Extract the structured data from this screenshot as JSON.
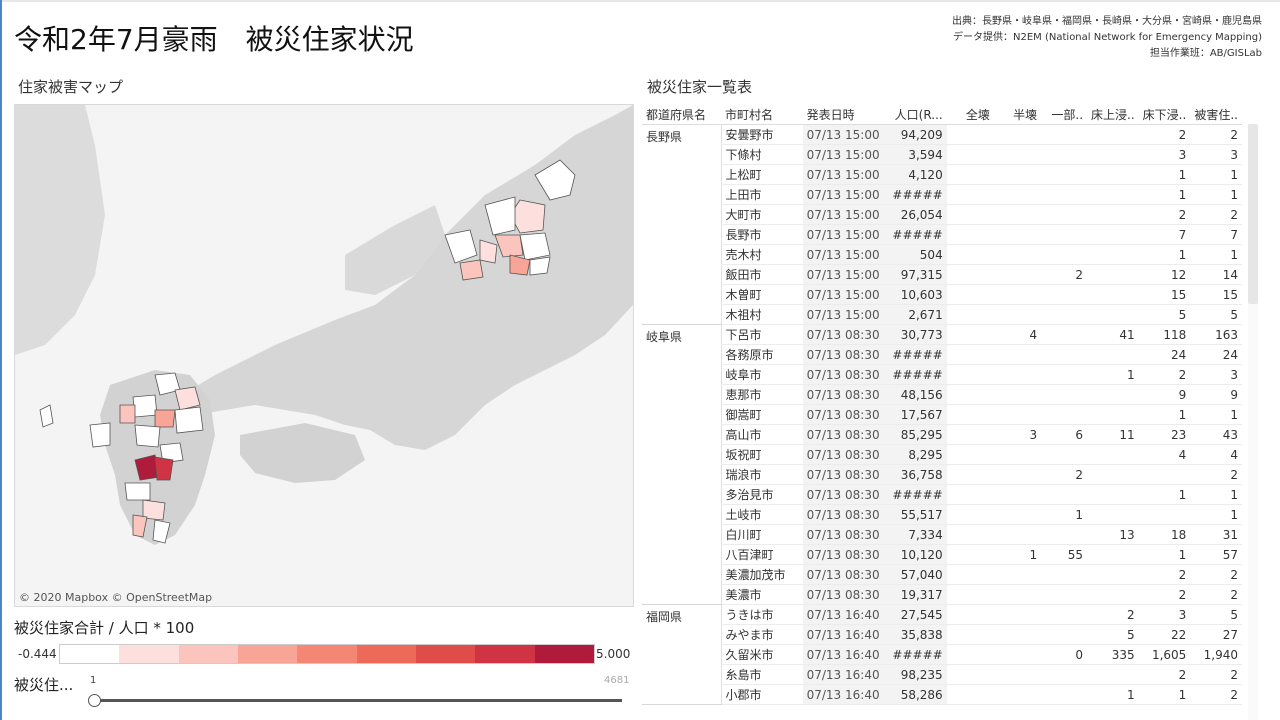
{
  "title": "令和2年7月豪雨　被災住家状況",
  "source": {
    "line1": "出典：長野県・岐阜県・福岡県・長崎県・大分県・宮崎県・鹿児島県",
    "line2": "データ提供：N2EM (National Network for Emergency Mapping)",
    "line3": "担当作業班：AB/GISLab"
  },
  "map": {
    "label": "住家被害マップ",
    "credit": "© 2020 Mapbox © OpenStreetMap"
  },
  "legend": {
    "title": "被災住家合計 / 人口 * 100",
    "min": "-0.444",
    "max": "5.000",
    "colors": [
      "#ffffff",
      "#fde0dd",
      "#fbc4bd",
      "#f8a496",
      "#f38774",
      "#ed6a5a",
      "#e04c47",
      "#cf3344",
      "#b01b3c"
    ]
  },
  "slider": {
    "label": "被災住...",
    "min": "1",
    "max": "4681"
  },
  "table": {
    "label": "被災住家一覧表",
    "headers": [
      "都道府県名",
      "市町村名",
      "発表日時",
      "人口(R...",
      "全壊",
      "半壊",
      "一部..",
      "床上浸..",
      "床下浸..",
      "被害住.."
    ],
    "groups": [
      {
        "pref": "長野県",
        "rows": [
          [
            "安曇野市",
            "07/13 15:00",
            "94,209",
            "",
            "",
            "",
            "",
            "2",
            "2"
          ],
          [
            "下條村",
            "07/13 15:00",
            "3,594",
            "",
            "",
            "",
            "",
            "3",
            "3"
          ],
          [
            "上松町",
            "07/13 15:00",
            "4,120",
            "",
            "",
            "",
            "",
            "1",
            "1"
          ],
          [
            "上田市",
            "07/13 15:00",
            "#####",
            "",
            "",
            "",
            "",
            "1",
            "1"
          ],
          [
            "大町市",
            "07/13 15:00",
            "26,054",
            "",
            "",
            "",
            "",
            "2",
            "2"
          ],
          [
            "長野市",
            "07/13 15:00",
            "#####",
            "",
            "",
            "",
            "",
            "7",
            "7"
          ],
          [
            "売木村",
            "07/13 15:00",
            "504",
            "",
            "",
            "",
            "",
            "1",
            "1"
          ],
          [
            "飯田市",
            "07/13 15:00",
            "97,315",
            "",
            "",
            "2",
            "",
            "12",
            "14"
          ],
          [
            "木曽町",
            "07/13 15:00",
            "10,603",
            "",
            "",
            "",
            "",
            "15",
            "15"
          ],
          [
            "木祖村",
            "07/13 15:00",
            "2,671",
            "",
            "",
            "",
            "",
            "5",
            "5"
          ]
        ]
      },
      {
        "pref": "岐阜県",
        "rows": [
          [
            "下呂市",
            "07/13 08:30",
            "30,773",
            "",
            "4",
            "",
            "41",
            "118",
            "163"
          ],
          [
            "各務原市",
            "07/13 08:30",
            "#####",
            "",
            "",
            "",
            "",
            "24",
            "24"
          ],
          [
            "岐阜市",
            "07/13 08:30",
            "#####",
            "",
            "",
            "",
            "1",
            "2",
            "3"
          ],
          [
            "恵那市",
            "07/13 08:30",
            "48,156",
            "",
            "",
            "",
            "",
            "9",
            "9"
          ],
          [
            "御嵩町",
            "07/13 08:30",
            "17,567",
            "",
            "",
            "",
            "",
            "1",
            "1"
          ],
          [
            "高山市",
            "07/13 08:30",
            "85,295",
            "",
            "3",
            "6",
            "11",
            "23",
            "43"
          ],
          [
            "坂祝町",
            "07/13 08:30",
            "8,295",
            "",
            "",
            "",
            "",
            "4",
            "4"
          ],
          [
            "瑞浪市",
            "07/13 08:30",
            "36,758",
            "",
            "",
            "2",
            "",
            "",
            "2"
          ],
          [
            "多治見市",
            "07/13 08:30",
            "#####",
            "",
            "",
            "",
            "",
            "1",
            "1"
          ],
          [
            "土岐市",
            "07/13 08:30",
            "55,517",
            "",
            "",
            "1",
            "",
            "",
            "1"
          ],
          [
            "白川町",
            "07/13 08:30",
            "7,334",
            "",
            "",
            "",
            "13",
            "18",
            "31"
          ],
          [
            "八百津町",
            "07/13 08:30",
            "10,120",
            "",
            "1",
            "55",
            "",
            "1",
            "57"
          ],
          [
            "美濃加茂市",
            "07/13 08:30",
            "57,040",
            "",
            "",
            "",
            "",
            "2",
            "2"
          ],
          [
            "美濃市",
            "07/13 08:30",
            "19,317",
            "",
            "",
            "",
            "",
            "2",
            "2"
          ]
        ]
      },
      {
        "pref": "福岡県",
        "rows": [
          [
            "うきは市",
            "07/13 16:40",
            "27,545",
            "",
            "",
            "",
            "2",
            "3",
            "5"
          ],
          [
            "みやま市",
            "07/13 16:40",
            "35,838",
            "",
            "",
            "",
            "5",
            "22",
            "27"
          ],
          [
            "久留米市",
            "07/13 16:40",
            "#####",
            "",
            "",
            "0",
            "335",
            "1,605",
            "1,940"
          ],
          [
            "糸島市",
            "07/13 16:40",
            "98,235",
            "",
            "",
            "",
            "",
            "2",
            "2"
          ],
          [
            "小郡市",
            "07/13 16:40",
            "58,286",
            "",
            "",
            "",
            "1",
            "1",
            "2"
          ]
        ]
      }
    ]
  }
}
